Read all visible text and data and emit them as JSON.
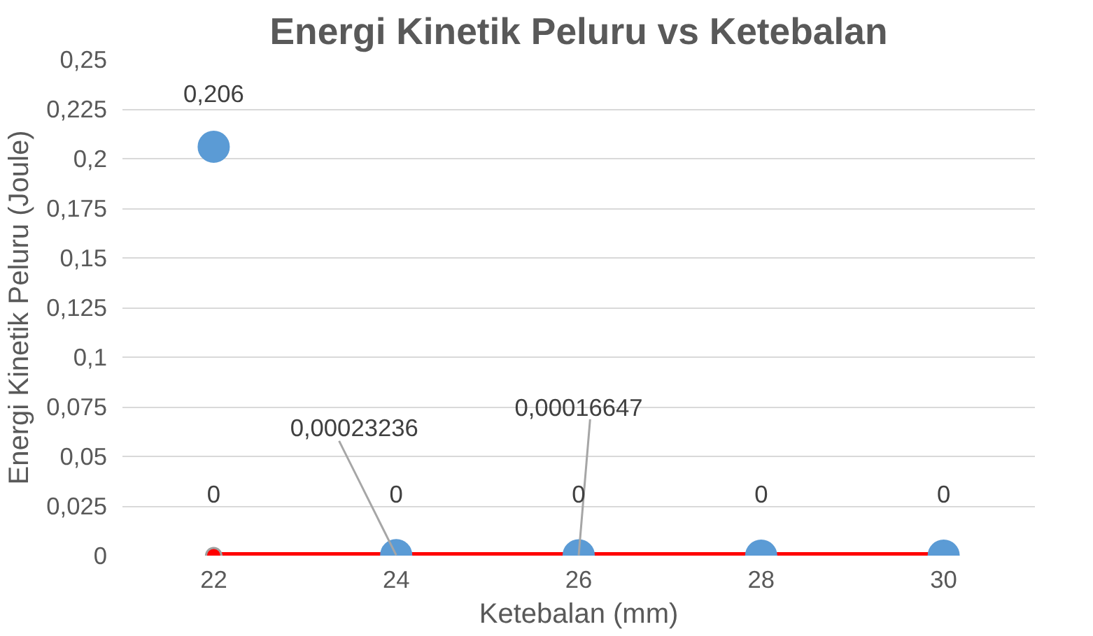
{
  "chart_data": {
    "type": "line",
    "title": "Energi Kinetik Peluru vs Ketebalan",
    "xlabel": "Ketebalan (mm)",
    "ylabel": "Energi Kinetik Peluru (Joule)",
    "categories": [
      "22",
      "24",
      "26",
      "28",
      "30"
    ],
    "series": [
      {
        "color": "#ff0000",
        "marker": "circle",
        "values": [
          0,
          0,
          0,
          0,
          0
        ],
        "value_labels": [
          "0",
          "0",
          "0",
          "0",
          "0"
        ]
      },
      {
        "type": "scatter",
        "color": "#5b9bd5",
        "marker": "circle",
        "x": [
          "22",
          "24",
          "26",
          "28",
          "30"
        ],
        "values": [
          0.206,
          0.00023236,
          0.00016647,
          0,
          0
        ],
        "value_labels": [
          "0,206",
          "0,00023236",
          "0,00016647",
          null,
          null
        ]
      }
    ],
    "ylim": [
      0,
      0.25
    ],
    "yticks": [
      0,
      {
        "value": 0.025,
        "label": "0,025"
      },
      {
        "value": 0.05,
        "label": "0,05"
      },
      {
        "value": 0.075,
        "label": "0,075"
      },
      {
        "value": 0.1,
        "label": "0,1"
      },
      {
        "value": 0.125,
        "label": "0,125"
      },
      {
        "value": 0.15,
        "label": "0,15"
      },
      {
        "value": 0.175,
        "label": "0,175"
      },
      {
        "value": 0.2,
        "label": "0,2"
      },
      {
        "value": 0.225,
        "label": "0,225"
      },
      {
        "value": 0.25,
        "label": "0,25"
      }
    ],
    "grid": "y"
  }
}
